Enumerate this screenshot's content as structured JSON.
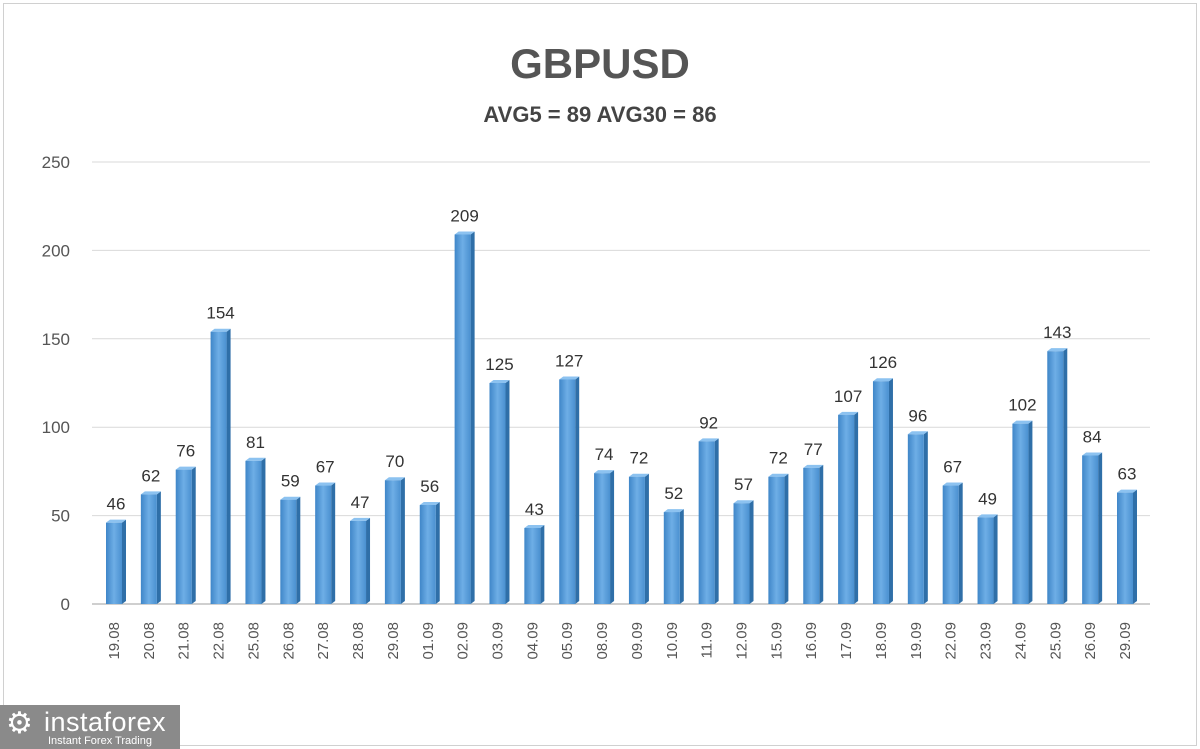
{
  "chart_data": {
    "type": "bar",
    "title": "GBPUSD",
    "subtitle": "AVG5 = 89 AVG30 = 86",
    "categories": [
      "19.08",
      "20.08",
      "21.08",
      "22.08",
      "25.08",
      "26.08",
      "27.08",
      "28.08",
      "29.08",
      "01.09",
      "02.09",
      "03.09",
      "04.09",
      "05.09",
      "08.09",
      "09.09",
      "10.09",
      "11.09",
      "12.09",
      "15.09",
      "16.09",
      "17.09",
      "18.09",
      "19.09",
      "22.09",
      "23.09",
      "24.09",
      "25.09",
      "26.09",
      "29.09"
    ],
    "values": [
      46,
      62,
      76,
      154,
      81,
      59,
      67,
      47,
      70,
      56,
      209,
      125,
      43,
      127,
      74,
      72,
      52,
      92,
      57,
      72,
      77,
      107,
      126,
      96,
      67,
      49,
      102,
      143,
      84,
      63
    ],
    "ylim": [
      0,
      250
    ],
    "yticks": [
      0,
      50,
      100,
      150,
      200,
      250
    ],
    "grid": true,
    "bar_color": "#5b9bd5",
    "data_labels": true
  },
  "watermark": {
    "name": "instaforex",
    "tagline": "Instant Forex Trading"
  }
}
